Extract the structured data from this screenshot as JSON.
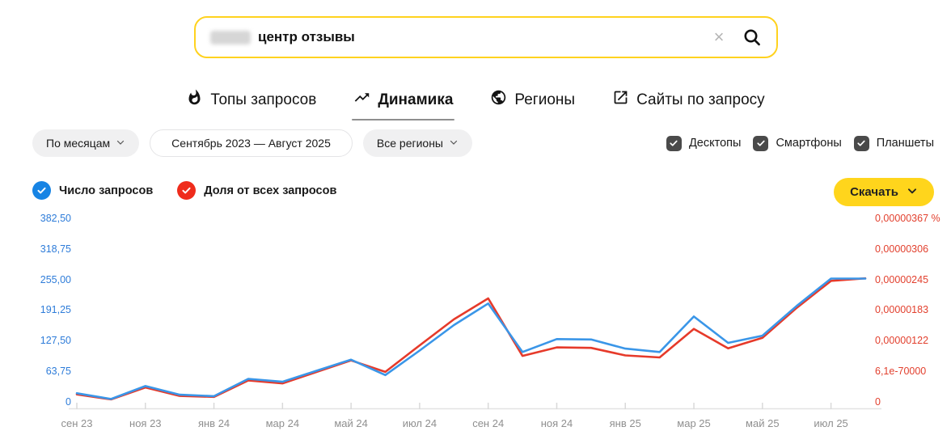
{
  "search": {
    "query": "центр отзывы",
    "clear_icon": "×"
  },
  "tabs": [
    {
      "label": "Топы запросов",
      "icon": "flame-icon",
      "active": false
    },
    {
      "label": "Динамика",
      "icon": "trending-up-icon",
      "active": true
    },
    {
      "label": "Регионы",
      "icon": "globe-icon",
      "active": false
    },
    {
      "label": "Сайты по запросу",
      "icon": "external-link-icon",
      "active": false
    }
  ],
  "filters": {
    "granularity": {
      "label": "По месяцам"
    },
    "period": {
      "label": "Сентябрь 2023 — Август 2025"
    },
    "region": {
      "label": "Все регионы"
    }
  },
  "device_filters": [
    {
      "label": "Десктопы",
      "checked": true
    },
    {
      "label": "Смартфоны",
      "checked": true
    },
    {
      "label": "Планшеты",
      "checked": true
    }
  ],
  "series_toggles": [
    {
      "label": "Число запросов",
      "color": "#1784e4",
      "checked": true
    },
    {
      "label": "Доля от всех запросов",
      "color": "#ef2c1c",
      "checked": true
    }
  ],
  "download": {
    "label": "Скачать"
  },
  "colors": {
    "accent_yellow": "#ffd21e",
    "blue_line": "#3a96e8",
    "red_line": "#e63a2a",
    "left_axis_text": "#2e7cd9",
    "right_axis_text": "#e2402e",
    "checkbox_dark": "#4a4a4a"
  },
  "chart_data": {
    "type": "line",
    "categories": [
      "сен 23",
      "окт 23",
      "ноя 23",
      "дек 23",
      "янв 24",
      "фев 24",
      "мар 24",
      "апр 24",
      "май 24",
      "июн 24",
      "июл 24",
      "авг 24",
      "сен 24",
      "окт 24",
      "ноя 24",
      "дек 24",
      "янв 25",
      "фев 25",
      "мар 25",
      "апр 25",
      "май 25",
      "июн 25",
      "июл 25",
      "авг 25"
    ],
    "x_tick_labels": [
      "сен 23",
      "ноя 23",
      "янв 24",
      "мар 24",
      "май 24",
      "июл 24",
      "сен 24",
      "ноя 24",
      "янв 25",
      "мар 25",
      "май 25",
      "июл 25"
    ],
    "series": [
      {
        "name": "Число запросов",
        "axis": "left",
        "color": "#3a96e8",
        "values": [
          18,
          6,
          33,
          15,
          12,
          48,
          42,
          65,
          88,
          56,
          107,
          160,
          205,
          104,
          131,
          130,
          111,
          104,
          178,
          123,
          138,
          200,
          257,
          257
        ]
      },
      {
        "name": "Доля от всех запросов",
        "axis": "right",
        "color": "#e63a2a",
        "values": [
          1.5e-07,
          5e-08,
          2.9e-07,
          1.2e-07,
          1e-07,
          4.3e-07,
          3.7e-07,
          6e-07,
          8.3e-07,
          6e-07,
          1.13e-06,
          1.65e-06,
          2.07e-06,
          9.2e-07,
          1.09e-06,
          1.08e-06,
          9.3e-07,
          8.9e-07,
          1.46e-06,
          1.07e-06,
          1.28e-06,
          1.88e-06,
          2.42e-06,
          2.47e-06
        ]
      }
    ],
    "left_axis": {
      "ticks": [
        "382,50",
        "318,75",
        "255,00",
        "191,25",
        "127,50",
        "63,75",
        "0"
      ],
      "max": 382.5
    },
    "right_axis": {
      "ticks": [
        "0,00000367 %",
        "0,00000306",
        "0,00000245",
        "0,00000183",
        "0,00000122",
        "6,1e-70000",
        "0"
      ],
      "max": 3.67e-06
    },
    "grid": "bottom-axis-only",
    "legend_position": "top-left"
  }
}
